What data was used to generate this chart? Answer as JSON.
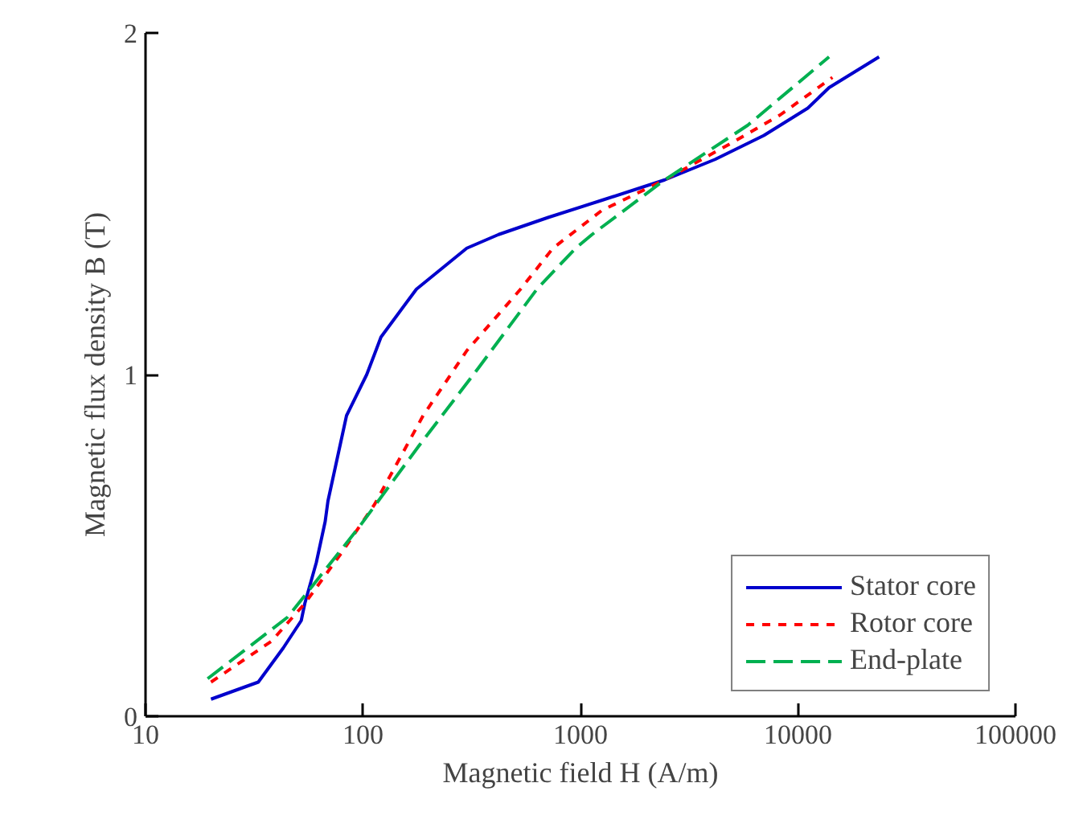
{
  "chart_data": {
    "type": "line",
    "xlabel": "Magnetic field H (A/m)",
    "ylabel": "Magnetic flux density B (T)",
    "log": "x",
    "xlim": [
      10,
      100000
    ],
    "xticks": [
      10,
      100,
      1000,
      10000,
      100000
    ],
    "ylim": [
      0,
      2
    ],
    "yticks": [
      0,
      1,
      2
    ],
    "grid": false,
    "legend": "bottom right",
    "series": [
      {
        "name": "Stator core",
        "color": "#0000cc",
        "line_style": "solid",
        "x": [
          20,
          33,
          43,
          52,
          54,
          61,
          67,
          69,
          84,
          104,
          113,
          121,
          176,
          300,
          420,
          710,
          1250,
          2440,
          4160,
          6970,
          11100,
          13900,
          23600
        ],
        "values": [
          0.05,
          0.1,
          0.2,
          0.28,
          0.33,
          0.45,
          0.57,
          0.63,
          0.88,
          1.0,
          1.06,
          1.11,
          1.25,
          1.37,
          1.41,
          1.46,
          1.51,
          1.57,
          1.63,
          1.7,
          1.78,
          1.84,
          1.93
        ]
      },
      {
        "name": "Rotor core",
        "color": "#ff0000",
        "line_style": "dotted",
        "x": [
          20,
          38,
          54,
          80,
          113,
          189,
          300,
          530,
          747,
          1250,
          2440,
          4700,
          8280,
          14400
        ],
        "values": [
          0.1,
          0.22,
          0.33,
          0.48,
          0.62,
          0.88,
          1.07,
          1.25,
          1.37,
          1.48,
          1.57,
          1.67,
          1.76,
          1.87
        ]
      },
      {
        "name": "End-plate",
        "color": "#00b050",
        "line_style": "dashed",
        "x": [
          19.3,
          45,
          95,
          180,
          340,
          630,
          950,
          1130,
          2440,
          5880,
          13900
        ],
        "values": [
          0.11,
          0.29,
          0.55,
          0.79,
          1.02,
          1.25,
          1.37,
          1.41,
          1.57,
          1.73,
          1.93
        ]
      }
    ]
  }
}
